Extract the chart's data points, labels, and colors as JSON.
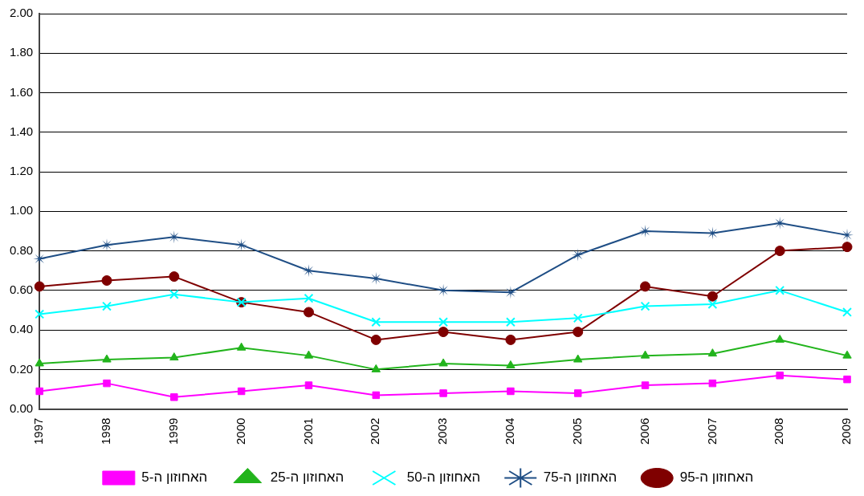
{
  "chart_data": {
    "type": "line",
    "categories": [
      "1997",
      "1998",
      "1999",
      "2000",
      "2001",
      "2002",
      "2003",
      "2004",
      "2005",
      "2006",
      "2007",
      "2008",
      "2009"
    ],
    "series": [
      {
        "name": "האחוזון ה-5",
        "color": "#ff00ff",
        "marker": "square",
        "values": [
          0.09,
          0.13,
          0.06,
          0.09,
          0.12,
          0.07,
          0.08,
          0.09,
          0.08,
          0.12,
          0.13,
          0.17,
          0.15
        ]
      },
      {
        "name": "האחוזון ה-25",
        "color": "#22b41c",
        "marker": "triangle",
        "values": [
          0.23,
          0.25,
          0.26,
          0.31,
          0.27,
          0.2,
          0.23,
          0.22,
          0.25,
          0.27,
          0.28,
          0.35,
          0.27
        ]
      },
      {
        "name": "האחוזון ה-50",
        "color": "#00ffff",
        "marker": "cross",
        "values": [
          0.48,
          0.52,
          0.58,
          0.54,
          0.56,
          0.44,
          0.44,
          0.44,
          0.46,
          0.52,
          0.53,
          0.6,
          0.49
        ]
      },
      {
        "name": "האחוזון ה-75",
        "color": "#1f4e85",
        "marker": "star",
        "values": [
          0.76,
          0.83,
          0.87,
          0.83,
          0.7,
          0.66,
          0.6,
          0.59,
          0.78,
          0.9,
          0.89,
          0.94,
          0.88
        ]
      },
      {
        "name": "האחוזון ה-95",
        "color": "#7f0000",
        "marker": "circle",
        "values": [
          0.62,
          0.65,
          0.67,
          0.54,
          0.49,
          0.35,
          0.39,
          0.35,
          0.39,
          0.62,
          0.57,
          0.8,
          0.82
        ]
      }
    ],
    "ylim": [
      0,
      2
    ],
    "yticks": [
      {
        "value": 0,
        "label": "0.00"
      },
      {
        "value": 0.2,
        "label": "0.20"
      },
      {
        "value": 0.4,
        "label": "0.40"
      },
      {
        "value": 0.6,
        "label": "0.60"
      },
      {
        "value": 0.8,
        "label": "0.80"
      },
      {
        "value": 1,
        "label": "1.00"
      },
      {
        "value": 1.2,
        "label": "1.20"
      },
      {
        "value": 1.4,
        "label": "1.40"
      },
      {
        "value": 1.6,
        "label": "1.60"
      },
      {
        "value": 1.8,
        "label": "1.80"
      },
      {
        "value": 2,
        "label": "2.00"
      }
    ],
    "grid": "y",
    "legend": "bottom",
    "line_style": "solid"
  }
}
